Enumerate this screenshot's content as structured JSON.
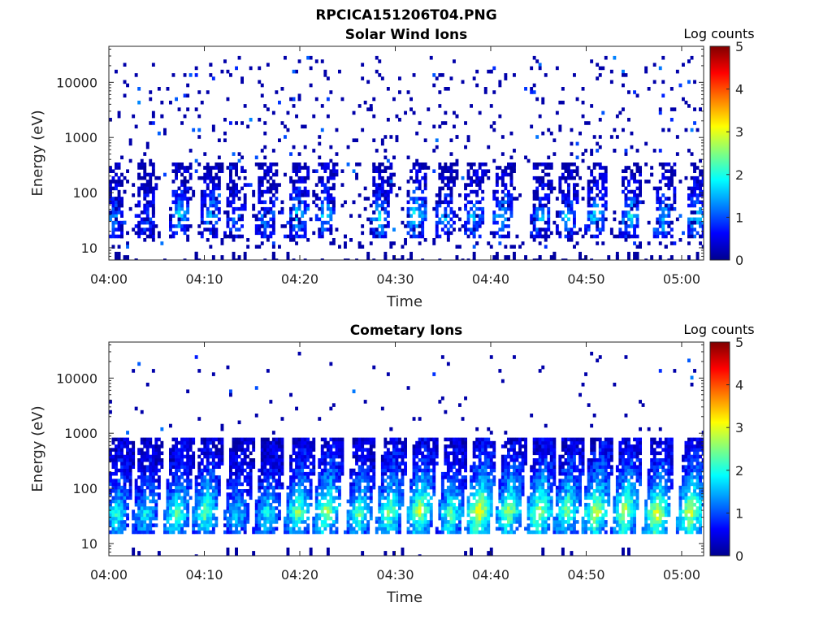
{
  "figure": {
    "file_title": "RPCICA151206T04.PNG"
  },
  "colormap": {
    "name": "jet",
    "stops": [
      "#00008f",
      "#0000ff",
      "#0080ff",
      "#00ffff",
      "#80ff80",
      "#ffff00",
      "#ff8000",
      "#ff0000",
      "#800000"
    ]
  },
  "chart_data": [
    {
      "type": "heatmap",
      "title": "Solar Wind Ions",
      "xlabel": "Time",
      "ylabel": "Energy (eV)",
      "x_ticks": [
        "04:00",
        "04:10",
        "04:20",
        "04:30",
        "04:40",
        "04:50",
        "05:00"
      ],
      "x_tick_minutes": [
        0,
        10,
        20,
        30,
        40,
        50,
        60
      ],
      "xlim_minutes": [
        0,
        62.3
      ],
      "y_ticks": [
        "10",
        "100",
        "1000",
        "10000"
      ],
      "y_tick_values": [
        10,
        100,
        1000,
        10000
      ],
      "yscale": "log",
      "ylim": [
        6,
        45000
      ],
      "colorbar_label": "Log counts",
      "colorbar_ticks": [
        "0",
        "1",
        "2",
        "3",
        "4",
        "5"
      ],
      "clim": [
        0,
        5
      ],
      "sweep_centers_minutes": [
        0.5,
        3.8,
        7.4,
        10.6,
        13.2,
        16.4,
        19.8,
        22.6,
        28.4,
        32.2,
        35.2,
        38.2,
        41.2,
        45.2,
        48.0,
        51.0,
        54.6,
        58.2,
        61.6
      ],
      "sweep_peak_energy_eV": [
        35,
        35,
        38,
        40,
        35,
        35,
        40,
        40,
        35,
        40,
        35,
        38,
        40,
        35,
        38,
        35,
        38,
        35,
        38
      ],
      "sweep_peak_log_counts": [
        1.4,
        1.2,
        1.9,
        1.6,
        1.3,
        1.4,
        1.9,
        1.8,
        1.8,
        2.0,
        1.5,
        1.7,
        1.8,
        1.6,
        1.7,
        1.9,
        1.9,
        1.8,
        2.0
      ],
      "background": "sparse single counts (log counts 0-0.5) from 10 eV to 30000 eV"
    },
    {
      "type": "heatmap",
      "title": "Cometary Ions",
      "xlabel": "Time",
      "ylabel": "Energy (eV)",
      "x_ticks": [
        "04:00",
        "04:10",
        "04:20",
        "04:30",
        "04:40",
        "04:50",
        "05:00"
      ],
      "x_tick_minutes": [
        0,
        10,
        20,
        30,
        40,
        50,
        60
      ],
      "xlim_minutes": [
        0,
        62.3
      ],
      "y_ticks": [
        "10",
        "100",
        "1000",
        "10000"
      ],
      "y_tick_values": [
        10,
        100,
        1000,
        10000
      ],
      "yscale": "log",
      "ylim": [
        6,
        45000
      ],
      "colorbar_label": "Log counts",
      "colorbar_ticks": [
        "0",
        "1",
        "2",
        "3",
        "4",
        "5"
      ],
      "clim": [
        0,
        5
      ],
      "sweep_centers_minutes": [
        0.8,
        3.8,
        7.1,
        10.1,
        13.4,
        16.6,
        19.8,
        22.8,
        26.2,
        29.4,
        32.6,
        35.8,
        38.8,
        41.9,
        45.1,
        48.0,
        51.0,
        54.1,
        57.4,
        60.9
      ],
      "sweep_peak_energy_eV": [
        35,
        35,
        35,
        38,
        35,
        35,
        38,
        40,
        35,
        38,
        40,
        35,
        38,
        40,
        38,
        40,
        38,
        40,
        35,
        38
      ],
      "sweep_peak_log_counts": [
        2.1,
        1.9,
        2.4,
        2.5,
        1.8,
        2.0,
        2.6,
        2.8,
        2.4,
        2.6,
        2.9,
        2.4,
        3.3,
        2.8,
        2.9,
        2.6,
        3.0,
        3.0,
        3.2,
        3.1
      ],
      "sweep_top_energy_eV": 700,
      "background": "sparse single counts (log counts 0-0.5) scattered between 1000 eV and 30000 eV"
    }
  ]
}
